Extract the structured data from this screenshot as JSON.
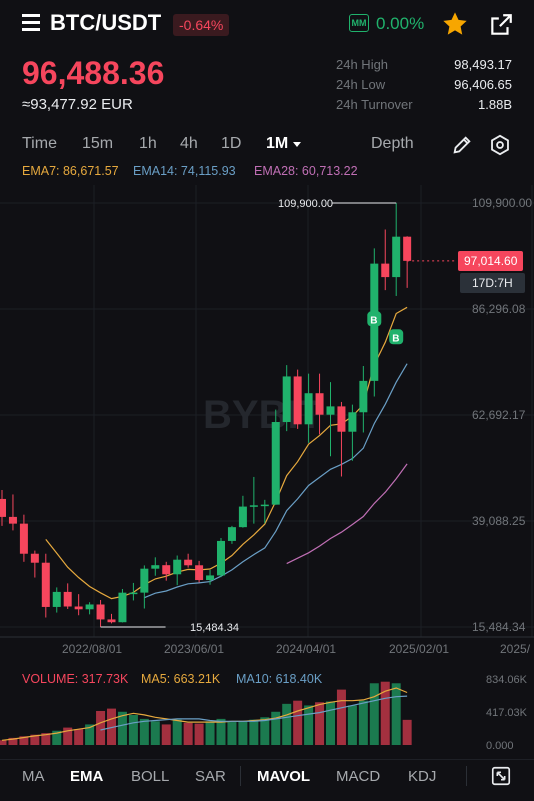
{
  "header": {
    "pair": "BTC/USDT",
    "change": "-0.64%",
    "mm_label": "MM",
    "mm_value": "0.00%",
    "last_price": "96,488.36",
    "fiat_price": "≈93,477.92 EUR",
    "stats": [
      {
        "label": "24h High",
        "value": "98,493.17"
      },
      {
        "label": "24h Low",
        "value": "96,406.65"
      },
      {
        "label": "24h Turnover",
        "value": "1.88B"
      }
    ]
  },
  "timeframes": [
    "Time",
    "15m",
    "1h",
    "4h",
    "1D",
    "1M",
    "Depth"
  ],
  "ema_legend": [
    {
      "label": "EMA7: 86,671.57",
      "color": "#e6a93e"
    },
    {
      "label": "EMA14: 74,115.93",
      "color": "#6a9fc6"
    },
    {
      "label": "EMA28: 60,713.22",
      "color": "#c06fb5"
    }
  ],
  "chart_data": {
    "type": "candlestick",
    "price_axis": [
      "109,900.00",
      "86,296.08",
      "62,692.17",
      "39,088.25",
      "15,484.34"
    ],
    "date_axis": [
      "2022/08/01",
      "2023/06/01",
      "2024/04/01",
      "2025/02/01",
      "2025/"
    ],
    "ylim": [
      15484.34,
      109900.0
    ],
    "high_marker": "109,900.00",
    "low_marker": "15,484.34",
    "last_price_tag": "97,014.60",
    "countdown": "17D:7H",
    "watermark": "BYBIT",
    "up_color": "#20b26c",
    "down_color": "#f6465d",
    "candles": [
      [
        44000,
        46000,
        38000,
        40000
      ],
      [
        40000,
        45000,
        37000,
        38500
      ],
      [
        38500,
        40500,
        30000,
        31800
      ],
      [
        31800,
        32500,
        26500,
        29800
      ],
      [
        29800,
        31800,
        17600,
        19950
      ],
      [
        19950,
        24300,
        18700,
        23300
      ],
      [
        23300,
        25200,
        19500,
        20050
      ],
      [
        20050,
        22800,
        18100,
        19430
      ],
      [
        19430,
        21000,
        18300,
        20500
      ],
      [
        20500,
        21500,
        15484,
        17170
      ],
      [
        17170,
        18400,
        16300,
        16550
      ],
      [
        16550,
        23950,
        16500,
        23130
      ],
      [
        23130,
        25300,
        21400,
        23140
      ],
      [
        23140,
        29200,
        19600,
        28470
      ],
      [
        28470,
        31000,
        26900,
        29250
      ],
      [
        29250,
        30000,
        25800,
        27220
      ],
      [
        27220,
        31400,
        24800,
        30470
      ],
      [
        30470,
        31800,
        28700,
        29230
      ],
      [
        29230,
        30200,
        25400,
        25940
      ],
      [
        25940,
        28200,
        24900,
        26970
      ],
      [
        26970,
        35300,
        26600,
        34650
      ],
      [
        34650,
        38000,
        34000,
        37720
      ],
      [
        37720,
        44700,
        37600,
        42300
      ],
      [
        42300,
        48900,
        38500,
        42580
      ],
      [
        42580,
        43800,
        38600,
        42730
      ],
      [
        42730,
        63900,
        42700,
        61130
      ],
      [
        61130,
        73800,
        59100,
        71280
      ],
      [
        71280,
        72800,
        59600,
        60620
      ],
      [
        60620,
        71900,
        56500,
        67540
      ],
      [
        67540,
        71900,
        58400,
        62760
      ],
      [
        62760,
        70000,
        53500,
        64610
      ],
      [
        64610,
        65600,
        49000,
        58970
      ],
      [
        58970,
        65000,
        52500,
        63300
      ],
      [
        63300,
        73600,
        58800,
        70290
      ],
      [
        70290,
        99800,
        66800,
        96400
      ],
      [
        96400,
        104000,
        90500,
        93400
      ],
      [
        93400,
        109900,
        89200,
        102400
      ],
      [
        102400,
        102500,
        91000,
        97014.6
      ]
    ],
    "ema_lines": [
      {
        "name": "EMA7",
        "color": "#e6a93e",
        "values": [
          null,
          null,
          null,
          null,
          35000,
          31900,
          28800,
          26500,
          24500,
          23100,
          21800,
          22300,
          23200,
          24900,
          26200,
          26800,
          27700,
          28300,
          28200,
          28400,
          29700,
          31400,
          33900,
          36000,
          38400,
          43500,
          49200,
          52300,
          56200,
          58100,
          60400,
          60700,
          62400,
          65000,
          73900,
          78900,
          85300,
          86671.57
        ]
      },
      {
        "name": "EMA14",
        "color": "#6a9fc6",
        "values": [
          null,
          null,
          null,
          null,
          null,
          null,
          null,
          null,
          null,
          null,
          null,
          null,
          null,
          22000,
          23000,
          23500,
          24400,
          25100,
          25300,
          25600,
          26800,
          28200,
          30000,
          31600,
          33100,
          36800,
          41400,
          44000,
          47000,
          48800,
          50600,
          51700,
          53000,
          55300,
          60800,
          65100,
          70000,
          74115.93
        ]
      },
      {
        "name": "EMA28",
        "color": "#c06fb5",
        "values": [
          null,
          null,
          null,
          null,
          null,
          null,
          null,
          null,
          null,
          null,
          null,
          null,
          null,
          null,
          null,
          null,
          null,
          null,
          null,
          null,
          null,
          null,
          null,
          null,
          null,
          null,
          29600,
          30800,
          32000,
          33500,
          35200,
          36600,
          38300,
          40100,
          43000,
          45500,
          48500,
          51800
        ]
      }
    ]
  },
  "volume": {
    "legend": [
      {
        "label": "VOLUME: 317.73K",
        "color": "#f6465d"
      },
      {
        "label": "MA5: 663.21K",
        "color": "#e6a93e"
      },
      {
        "label": "MA10: 618.40K",
        "color": "#6a9fc6"
      }
    ],
    "axis": [
      "834.06K",
      "417.03K",
      "0.000"
    ],
    "max": 834060,
    "bars": [
      60000,
      90000,
      110000,
      130000,
      150000,
      180000,
      220000,
      200000,
      260000,
      430000,
      460000,
      420000,
      380000,
      330000,
      300000,
      260000,
      320000,
      280000,
      270000,
      300000,
      330000,
      290000,
      300000,
      320000,
      350000,
      420000,
      520000,
      560000,
      500000,
      540000,
      550000,
      700000,
      500000,
      560000,
      780000,
      800000,
      780000,
      317730
    ],
    "ma5": [
      60000,
      75000,
      95000,
      115000,
      130000,
      150000,
      180000,
      200000,
      220000,
      280000,
      330000,
      370000,
      400000,
      380000,
      350000,
      330000,
      310000,
      290000,
      290000,
      290000,
      290000,
      300000,
      300000,
      310000,
      320000,
      340000,
      380000,
      430000,
      470000,
      510000,
      540000,
      560000,
      560000,
      570000,
      610000,
      680000,
      720000,
      663210
    ],
    "ma10": [
      null,
      null,
      null,
      null,
      null,
      null,
      null,
      null,
      null,
      190000,
      220000,
      250000,
      280000,
      300000,
      310000,
      320000,
      330000,
      330000,
      330000,
      310000,
      300000,
      300000,
      300000,
      300000,
      310000,
      330000,
      350000,
      370000,
      390000,
      410000,
      440000,
      470000,
      500000,
      530000,
      560000,
      590000,
      610000,
      618400
    ]
  },
  "bottom_tabs": [
    "MA",
    "EMA",
    "BOLL",
    "SAR",
    "MAVOL",
    "MACD",
    "KDJ"
  ]
}
